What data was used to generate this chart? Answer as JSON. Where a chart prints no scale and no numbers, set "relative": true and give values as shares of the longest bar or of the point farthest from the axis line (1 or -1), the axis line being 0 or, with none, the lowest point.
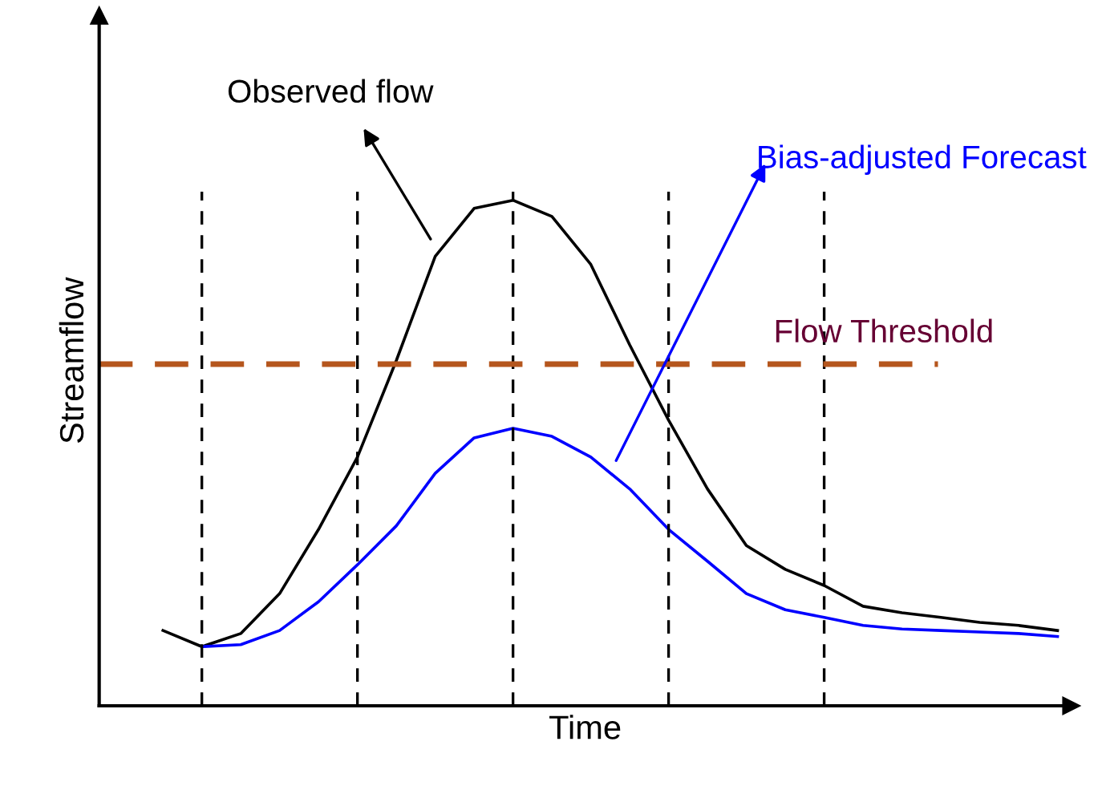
{
  "chart_data": {
    "type": "line",
    "relative": true,
    "xlabel": "Time",
    "ylabel": "Streamflow",
    "legend": false,
    "grid": "x",
    "marker": "none",
    "line_style": "solid",
    "categories": [
      null,
      null,
      null,
      null,
      null,
      null,
      null,
      null,
      null,
      null,
      null,
      null,
      null,
      null,
      null,
      null,
      null,
      null,
      null,
      null,
      null,
      null,
      null,
      null
    ],
    "series": [
      {
        "color": "#000000",
        "values": [
          0.149,
          0.117,
          0.143,
          0.222,
          0.349,
          0.492,
          0.683,
          0.889,
          0.984,
          1,
          0.968,
          0.873,
          0.714,
          0.565,
          0.429,
          0.317,
          0.27,
          0.238,
          0.197,
          0.184,
          0.175,
          0.165,
          0.159,
          0.149
        ]
      },
      {
        "color": "#0000ff",
        "values": [
          null,
          0.117,
          0.121,
          0.149,
          0.206,
          0.279,
          0.356,
          0.46,
          0.53,
          0.549,
          0.533,
          0.492,
          0.429,
          0.349,
          0.286,
          0.222,
          0.19,
          0.175,
          0.159,
          0.152,
          0.149,
          0.146,
          0.143,
          0.137
        ]
      }
    ],
    "ref_lines": [
      {
        "axis": "y",
        "value": 0.676,
        "label": "Flow Threshold",
        "color": "#b5561d",
        "line_style": "dashed"
      }
    ],
    "annotations": [
      "Observed flow",
      "Bias-adjusted Forecast"
    ]
  }
}
